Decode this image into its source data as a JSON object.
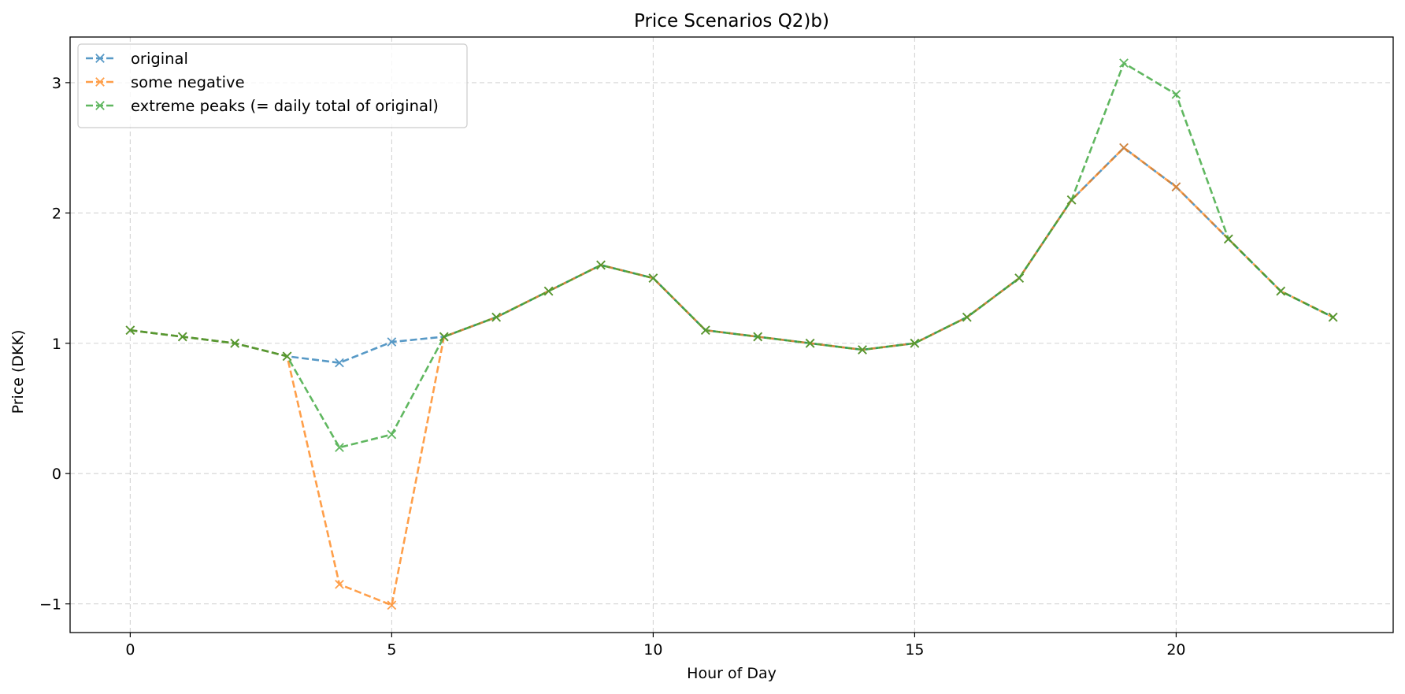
{
  "chart_data": {
    "type": "line",
    "title": "Price Scenarios Q2)b)",
    "xlabel": "Hour of Day",
    "ylabel": "Price (DKK)",
    "xlim": [
      -1.15,
      24.15
    ],
    "ylim": [
      -1.22,
      3.35
    ],
    "xticks": [
      0,
      5,
      10,
      15,
      20
    ],
    "yticks": [
      -1,
      0,
      1,
      2,
      3
    ],
    "xtick_labels": [
      "0",
      "5",
      "10",
      "15",
      "20"
    ],
    "ytick_labels": [
      "−1",
      "0",
      "1",
      "2",
      "3"
    ],
    "grid": true,
    "legend_position": "top-left",
    "x": [
      0,
      1,
      2,
      3,
      4,
      5,
      6,
      7,
      8,
      9,
      10,
      11,
      12,
      13,
      14,
      15,
      16,
      17,
      18,
      19,
      20,
      21,
      22,
      23
    ],
    "series": [
      {
        "name": "original",
        "color": "#1f77b4",
        "marker": "x",
        "linestyle": "dashed",
        "values": [
          1.1,
          1.05,
          1.0,
          0.9,
          0.85,
          1.01,
          1.05,
          1.2,
          1.4,
          1.6,
          1.5,
          1.1,
          1.05,
          1.0,
          0.95,
          1.0,
          1.2,
          1.5,
          2.1,
          2.5,
          2.2,
          1.8,
          1.4,
          1.2
        ]
      },
      {
        "name": "some negative",
        "color": "#ff7f0e",
        "marker": "x",
        "linestyle": "dashed",
        "values": [
          1.1,
          1.05,
          1.0,
          0.9,
          -0.85,
          -1.01,
          1.05,
          1.2,
          1.4,
          1.6,
          1.5,
          1.1,
          1.05,
          1.0,
          0.95,
          1.0,
          1.2,
          1.5,
          2.1,
          2.5,
          2.2,
          1.8,
          1.4,
          1.2
        ]
      },
      {
        "name": "extreme peaks (= daily total of original)",
        "color": "#2ca02c",
        "marker": "x",
        "linestyle": "dashed",
        "values": [
          1.1,
          1.05,
          1.0,
          0.9,
          0.2,
          0.3,
          1.05,
          1.2,
          1.4,
          1.6,
          1.5,
          1.1,
          1.05,
          1.0,
          0.95,
          1.0,
          1.2,
          1.5,
          2.1,
          3.15,
          2.91,
          1.8,
          1.4,
          1.2
        ]
      }
    ]
  }
}
